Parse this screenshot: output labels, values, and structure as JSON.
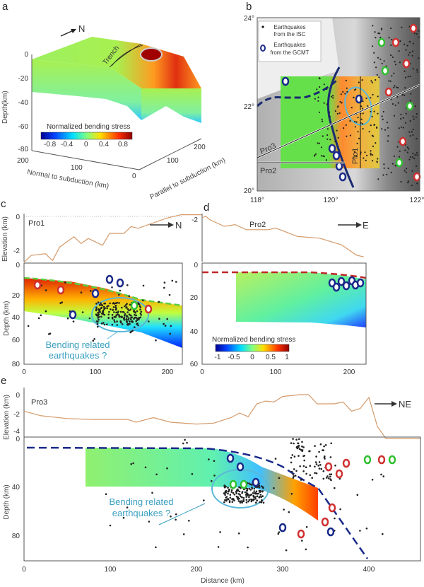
{
  "panels": {
    "a": {
      "label": "a",
      "north": "N",
      "trench": "Trench",
      "depth_axis": "Depth(km)",
      "depth_ticks": [
        "0",
        "-20",
        "-40",
        "-60",
        "-80"
      ],
      "normal_axis": "Normal to subduction (km)",
      "normal_ticks": [
        "200",
        "100",
        "0"
      ],
      "parallel_axis": "Parallel to subduction (km)",
      "parallel_ticks": [
        "100",
        "200"
      ],
      "colorbar_title": "Normalized bending stress",
      "colorbar_ticks": [
        "-0.8",
        "-0.4",
        "0",
        "0.4",
        "0.8"
      ]
    },
    "b": {
      "label": "b",
      "lat_ticks": [
        "24°",
        "22°",
        "20°"
      ],
      "lon_ticks": [
        "118°",
        "120°",
        "122°"
      ],
      "legend": {
        "isc_line1": "Earthquakes",
        "isc_line2": "from  the ISC",
        "gcmt_line1": "Earthquakes",
        "gcmt_line2": "from the GCMT"
      },
      "profiles": [
        "Pro1",
        "Pro2",
        "Pro3"
      ]
    },
    "c": {
      "label": "c",
      "profile_name": "Pro1",
      "direction": "N",
      "elev_axis": "Elevation (km)",
      "elev_ticks": [
        "0",
        "-2"
      ],
      "depth_axis": "Depth (km)",
      "depth_ticks": [
        "0",
        "20",
        "40",
        "60",
        "80"
      ],
      "x_ticks": [
        "0",
        "100",
        "200"
      ],
      "annotation_line1": "Bending related",
      "annotation_line2": "earthquakes ?"
    },
    "d": {
      "label": "d",
      "profile_name": "Pro2",
      "direction": "E",
      "elev_ticks": [
        "-2"
      ],
      "depth_ticks": [
        "0",
        "20",
        "40",
        "60"
      ],
      "x_ticks": [
        "0",
        "100",
        "200"
      ],
      "colorbar_title": "Normalized bending stress",
      "colorbar_ticks": [
        "-1",
        "-0.5",
        "0",
        "0.5",
        "1"
      ]
    },
    "e": {
      "label": "e",
      "profile_name": "Pro3",
      "direction": "NE",
      "elev_axis": "Elevation (km)",
      "elev_ticks": [
        "0",
        "-2",
        "-4"
      ],
      "depth_axis": "Depth (km)",
      "depth_ticks": [
        "0",
        "40",
        "80"
      ],
      "x_ticks": [
        "0",
        "100",
        "200",
        "300",
        "400"
      ],
      "x_axis": "Distance (km)",
      "annotation_line1": "Bending related",
      "annotation_line2": "earthquakes ?"
    }
  },
  "colors": {
    "profile_line": "#d59a6a",
    "annotation": "#3a9fc0",
    "slab_dashed": "#1a2a8a",
    "moho_dashed": "#c0282a"
  },
  "chart_data": [
    {
      "type": "line",
      "name": "Pro1",
      "x": [
        0,
        10,
        30,
        40,
        50,
        70,
        80,
        90,
        110,
        120,
        140,
        150,
        160,
        180,
        200,
        220,
        250
      ],
      "y": [
        -2.7,
        -2.3,
        -2.2,
        -2.6,
        -1.8,
        -1.2,
        -1.6,
        -1.3,
        -1.7,
        -1.0,
        -1.0,
        -0.6,
        -0.7,
        -0.4,
        -0.1,
        0.1,
        0.1
      ]
    },
    {
      "type": "line",
      "name": "Pro2",
      "x": [
        0,
        5,
        10,
        30,
        45,
        60,
        90,
        100,
        130,
        160,
        190,
        210,
        220
      ],
      "y": [
        -2.0,
        -1.9,
        -2.1,
        -2.5,
        -2.4,
        -2.7,
        -2.7,
        -2.6,
        -3.1,
        -3.2,
        -3.6,
        -4.2,
        -4.3
      ]
    },
    {
      "type": "line",
      "name": "Pro3",
      "x": [
        0,
        20,
        50,
        80,
        100,
        120,
        130,
        150,
        170,
        200,
        220,
        240,
        250,
        260,
        270,
        280,
        290,
        300,
        320,
        330,
        340,
        360,
        370,
        380,
        390,
        400,
        410,
        420,
        460
      ],
      "y": [
        -1.8,
        -2.3,
        -2.6,
        -2.7,
        -2.7,
        -2.7,
        -3.0,
        -2.5,
        -3.0,
        -3.2,
        -3.1,
        -2.5,
        -2.0,
        -2.4,
        -1.0,
        -0.7,
        -0.8,
        -0.2,
        0,
        0,
        -1.0,
        -1.0,
        -0.8,
        -1.8,
        -1.5,
        -0.3,
        -3.5,
        -4.8,
        -4.8
      ]
    }
  ]
}
